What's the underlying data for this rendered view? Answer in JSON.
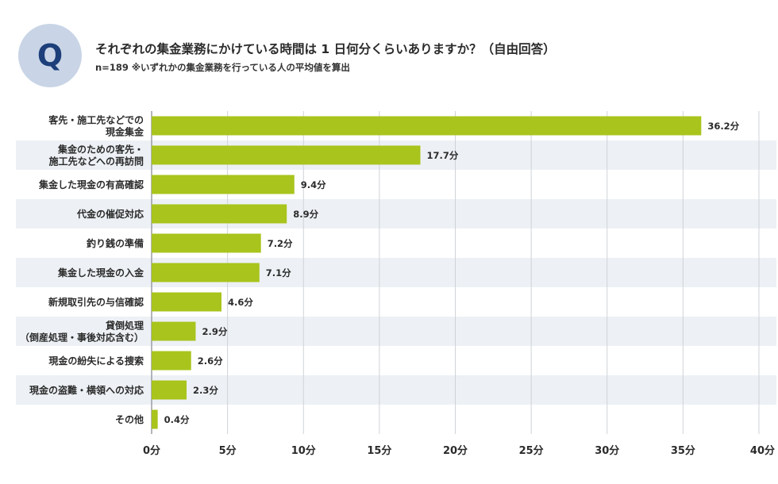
{
  "header": {
    "q_label": "Q",
    "title": "それぞれの集金業務にかけている時間は 1 日何分くらいありますか？（自由回答）",
    "subtitle": "n=189 ※いずれかの集金業務を行っている人の平均値を算出"
  },
  "colors": {
    "bar": "#a8c41d",
    "stripe": "#edf1f5",
    "grid": "#cfd3d8",
    "axis": "#9a9ea3",
    "badge": "#c9d5e6",
    "badge_text": "#1d3f7a"
  },
  "chart_data": {
    "type": "bar",
    "orientation": "horizontal",
    "title": "それぞれの集金業務にかけている時間は 1 日何分くらいありますか？（自由回答）",
    "unit": "分",
    "xlim": [
      0,
      40
    ],
    "xticks": [
      0,
      5,
      10,
      15,
      20,
      25,
      30,
      35,
      40
    ],
    "xtick_labels": [
      "0分",
      "5分",
      "10分",
      "15分",
      "20分",
      "25分",
      "30分",
      "35分",
      "40分"
    ],
    "grid": true,
    "categories": [
      [
        "客先・施工先などでの",
        "現金集金"
      ],
      [
        "集金のための客先・",
        "施工先などへの再訪問"
      ],
      [
        "集金した現金の有高確認"
      ],
      [
        "代金の催促対応"
      ],
      [
        "釣り銭の準備"
      ],
      [
        "集金した現金の入金"
      ],
      [
        "新規取引先の与信確認"
      ],
      [
        "貸倒処理",
        "（倒産処理・事後対応含む）"
      ],
      [
        "現金の紛失による捜索"
      ],
      [
        "現金の盗難・横領への対応"
      ],
      [
        "その他"
      ]
    ],
    "values": [
      36.2,
      17.7,
      9.4,
      8.9,
      7.2,
      7.1,
      4.6,
      2.9,
      2.6,
      2.3,
      0.4
    ],
    "value_labels": [
      "36.2分",
      "17.7分",
      "9.4分",
      "8.9分",
      "7.2分",
      "7.1分",
      "4.6分",
      "2.9分",
      "2.6分",
      "2.3分",
      "0.4分"
    ]
  }
}
